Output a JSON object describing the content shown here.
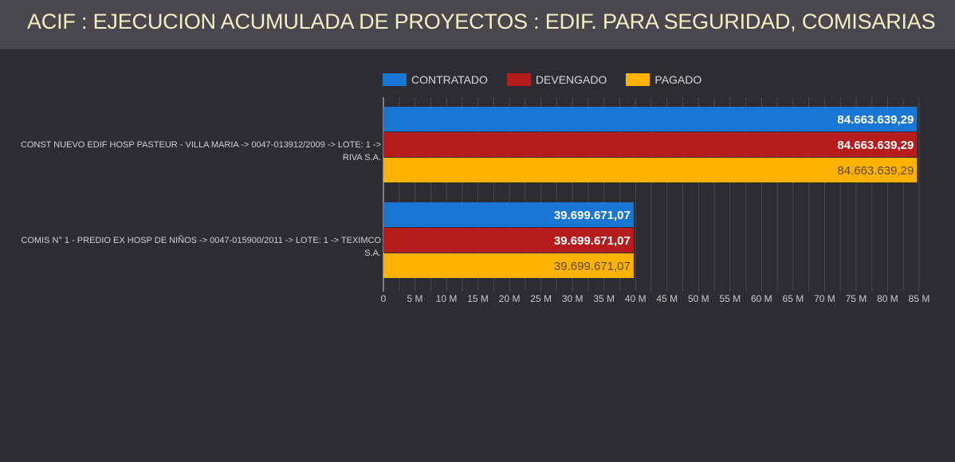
{
  "header": {
    "title": "ACIF : EJECUCION ACUMULADA DE PROYECTOS : EDIF. PARA SEGURIDAD, COMISARIAS"
  },
  "chart_data": {
    "type": "bar",
    "orientation": "horizontal",
    "title": "ACIF : EJECUCION ACUMULADA DE PROYECTOS : EDIF. PARA SEGURIDAD, COMISARIAS",
    "categories": [
      "CONST NUEVO EDIF HOSP PASTEUR - VILLA MARIA -> 0047-013912/2009 -> LOTE: 1 -> RIVA S.A.",
      "COMIS N° 1 - PREDIO EX HOSP DE NIÑOS -> 0047-015900/2011 -> LOTE: 1 -> TEXIMCO S.A."
    ],
    "series": [
      {
        "name": "CONTRATADO",
        "color": "#1976d2",
        "label_color": "#ffffff",
        "values": [
          84663639.29,
          39699671.07
        ],
        "labels": [
          "84.663.639,29",
          "39.699.671,07"
        ]
      },
      {
        "name": "DEVENGADO",
        "color": "#b71c1c",
        "label_color": "#ffffff",
        "values": [
          84663639.29,
          39699671.07
        ],
        "labels": [
          "84.663.639,29",
          "39.699.671,07"
        ]
      },
      {
        "name": "PAGADO",
        "color": "#ffb300",
        "label_color": "#5a4a20",
        "values": [
          84663639.29,
          39699671.07
        ],
        "labels": [
          "84.663.639,29",
          "39.699.671,07"
        ]
      }
    ],
    "xlim": [
      0,
      85000000
    ],
    "xticks": [
      0,
      5000000,
      10000000,
      15000000,
      20000000,
      25000000,
      30000000,
      35000000,
      40000000,
      45000000,
      50000000,
      55000000,
      60000000,
      65000000,
      70000000,
      75000000,
      80000000,
      85000000
    ],
    "xtick_labels": [
      "0",
      "5 M",
      "10 M",
      "15 M",
      "20 M",
      "25 M",
      "30 M",
      "35 M",
      "40 M",
      "45 M",
      "50 M",
      "55 M",
      "60 M",
      "65 M",
      "70 M",
      "75 M",
      "80 M",
      "85 M"
    ],
    "legend": "top",
    "grid": true
  }
}
